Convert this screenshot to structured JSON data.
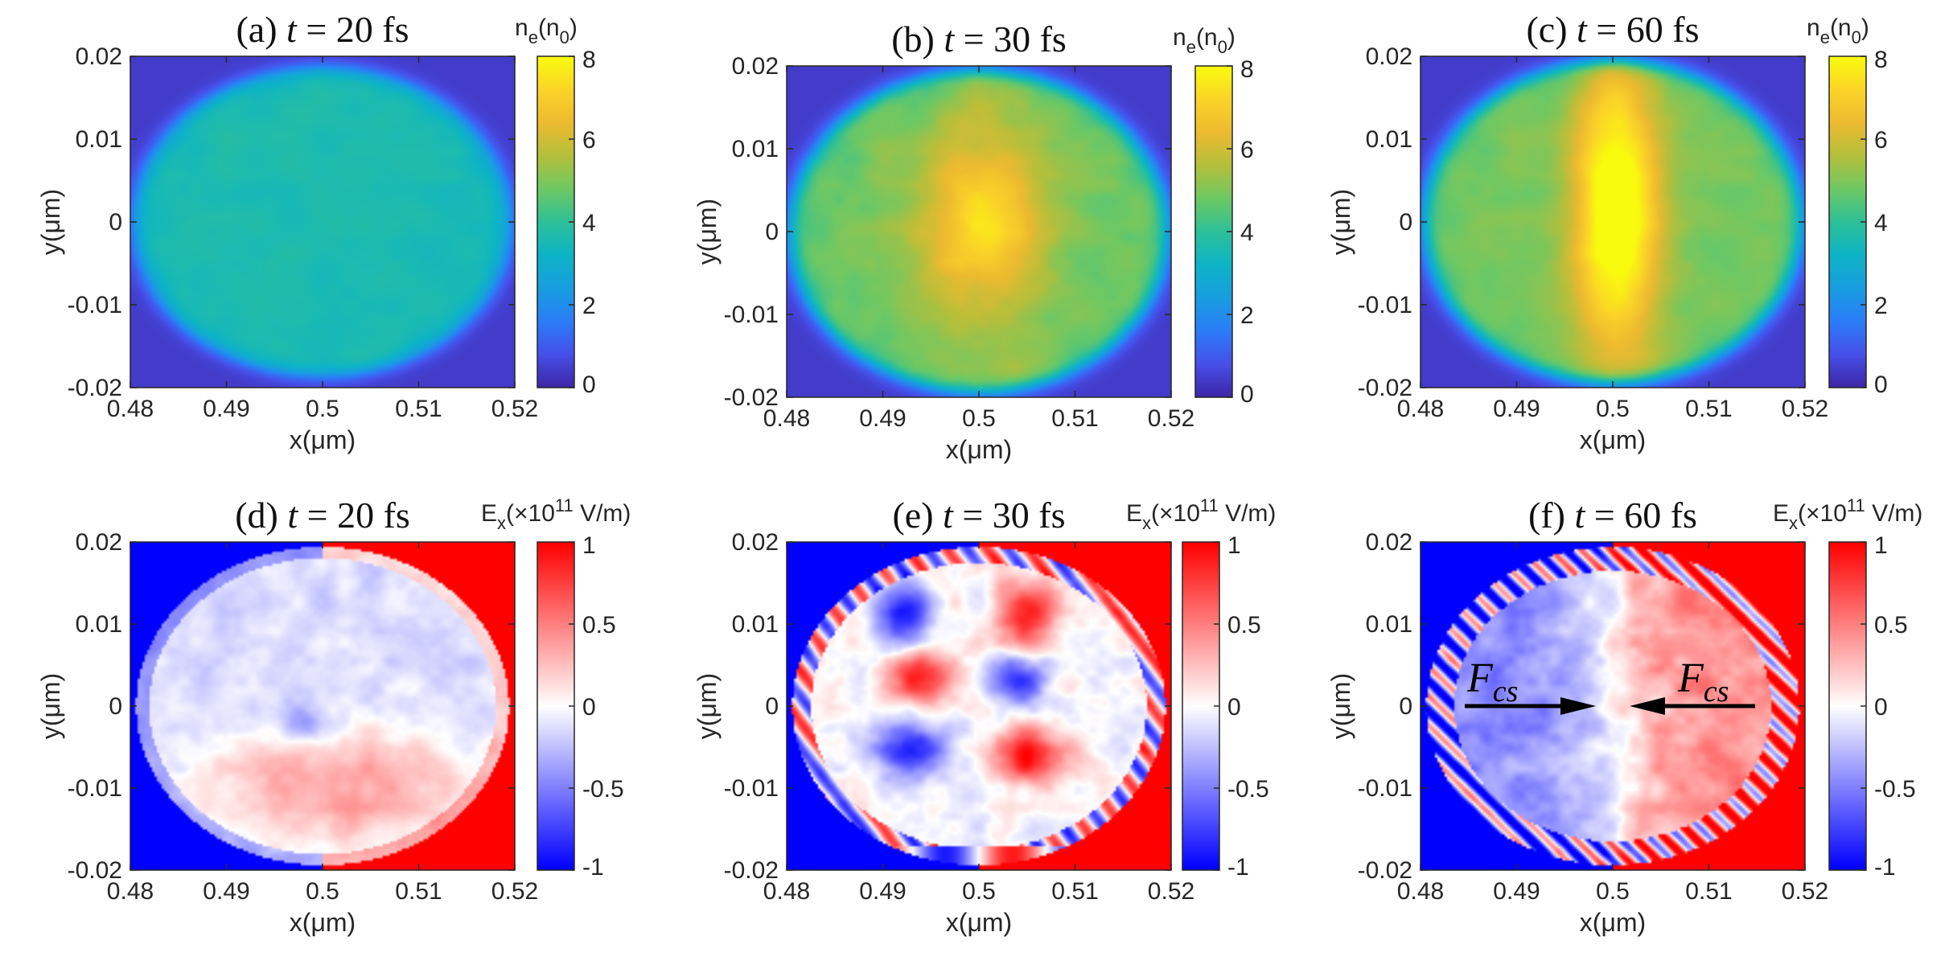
{
  "figure": {
    "panels": [
      {
        "label": "(a)",
        "time_text": "t = 20 fs",
        "quantity": "ne",
        "colormap": "parula",
        "pattern": "ne20",
        "cbar_label": {
          "base": "n",
          "sub": "e",
          "rest": "(n",
          "sub2": "0",
          "end": ")"
        },
        "cbar_ticks": [
          "0",
          "2",
          "4",
          "6",
          "8"
        ],
        "cbar_range": [
          0,
          8
        ]
      },
      {
        "label": "(b)",
        "time_text": "t = 30 fs",
        "quantity": "ne",
        "colormap": "parula",
        "pattern": "ne30",
        "cbar_label": {
          "base": "n",
          "sub": "e",
          "rest": "(n",
          "sub2": "0",
          "end": ")"
        },
        "cbar_ticks": [
          "0",
          "2",
          "4",
          "6",
          "8"
        ],
        "cbar_range": [
          0,
          8
        ]
      },
      {
        "label": "(c)",
        "time_text": "t = 60 fs",
        "quantity": "ne",
        "colormap": "parula",
        "pattern": "ne60",
        "cbar_label": {
          "base": "n",
          "sub": "e",
          "rest": "(n",
          "sub2": "0",
          "end": ")"
        },
        "cbar_ticks": [
          "0",
          "2",
          "4",
          "6",
          "8"
        ],
        "cbar_range": [
          0,
          8
        ]
      },
      {
        "label": "(d)",
        "time_text": "t = 20 fs",
        "quantity": "Ex",
        "colormap": "bwr",
        "pattern": "ex20",
        "cbar_label": {
          "base": "E",
          "sub": "x",
          "rest": "(×10",
          "sup": "11",
          "end": " V/m)"
        },
        "cbar_ticks": [
          "-1",
          "-0.5",
          "0",
          "0.5",
          "1"
        ],
        "cbar_range": [
          -1,
          1
        ]
      },
      {
        "label": "(e)",
        "time_text": "t = 30 fs",
        "quantity": "Ex",
        "colormap": "bwr",
        "pattern": "ex30",
        "cbar_label": {
          "base": "E",
          "sub": "x",
          "rest": "(×10",
          "sup": "11",
          "end": " V/m)"
        },
        "cbar_ticks": [
          "-1",
          "-0.5",
          "0",
          "0.5",
          "1"
        ],
        "cbar_range": [
          -1,
          1
        ]
      },
      {
        "label": "(f)",
        "time_text": "t = 60 fs",
        "quantity": "Ex",
        "colormap": "bwr",
        "pattern": "ex60",
        "cbar_label": {
          "base": "E",
          "sub": "x",
          "rest": "(×10",
          "sup": "11",
          "end": " V/m)"
        },
        "cbar_ticks": [
          "-1",
          "-0.5",
          "0",
          "0.5",
          "1"
        ],
        "cbar_range": [
          -1,
          1
        ],
        "annotations": [
          {
            "text": "F",
            "sub": "cs",
            "arrow": "right"
          },
          {
            "text": "F",
            "sub": "cs",
            "arrow": "left"
          }
        ]
      }
    ],
    "axes": {
      "xlabel": "x(μm)",
      "ylabel": "y(μm)",
      "xticks": [
        "0.48",
        "0.49",
        "0.5",
        "0.51",
        "0.52"
      ],
      "yticks": [
        "0.02",
        "0.01",
        "0",
        "-0.01",
        "-0.02"
      ]
    }
  },
  "chart_data": [
    {
      "type": "heatmap",
      "title": "(a) t = 20 fs",
      "xlabel": "x(μm)",
      "ylabel": "y(μm)",
      "xlim": [
        0.48,
        0.52
      ],
      "ylim": [
        -0.02,
        0.02
      ],
      "colorbar": "ne(n0)",
      "clim": [
        0,
        8
      ],
      "description_values": {
        "background": 0.5,
        "disk_mean": 3.5
      }
    },
    {
      "type": "heatmap",
      "title": "(b) t = 30 fs",
      "xlabel": "x(μm)",
      "ylabel": "y(μm)",
      "xlim": [
        0.48,
        0.52
      ],
      "ylim": [
        -0.02,
        0.02
      ],
      "colorbar": "ne(n0)",
      "clim": [
        0,
        8
      ],
      "description_values": {
        "background": 0.5,
        "disk_mean": 5,
        "center_peak": 6.5
      }
    },
    {
      "type": "heatmap",
      "title": "(c) t = 60 fs",
      "xlabel": "x(μm)",
      "ylabel": "y(μm)",
      "xlim": [
        0.48,
        0.52
      ],
      "ylim": [
        -0.02,
        0.02
      ],
      "colorbar": "ne(n0)",
      "clim": [
        0,
        8
      ],
      "description_values": {
        "background": 0.5,
        "disk_mean": 5,
        "center_band_peak": 8
      }
    },
    {
      "type": "heatmap",
      "title": "(d) t = 20 fs",
      "xlabel": "x(μm)",
      "ylabel": "y(μm)",
      "xlim": [
        0.48,
        0.52
      ],
      "ylim": [
        -0.02,
        0.02
      ],
      "colorbar": "Ex(×10^11 V/m)",
      "clim": [
        -1,
        1
      ]
    },
    {
      "type": "heatmap",
      "title": "(e) t = 30 fs",
      "xlabel": "x(μm)",
      "ylabel": "y(μm)",
      "xlim": [
        0.48,
        0.52
      ],
      "ylim": [
        -0.02,
        0.02
      ],
      "colorbar": "Ex(×10^11 V/m)",
      "clim": [
        -1,
        1
      ]
    },
    {
      "type": "heatmap",
      "title": "(f) t = 60 fs",
      "xlabel": "x(μm)",
      "ylabel": "y(μm)",
      "xlim": [
        0.48,
        0.52
      ],
      "ylim": [
        -0.02,
        0.02
      ],
      "colorbar": "Ex(×10^11 V/m)",
      "clim": [
        -1,
        1
      ]
    }
  ]
}
